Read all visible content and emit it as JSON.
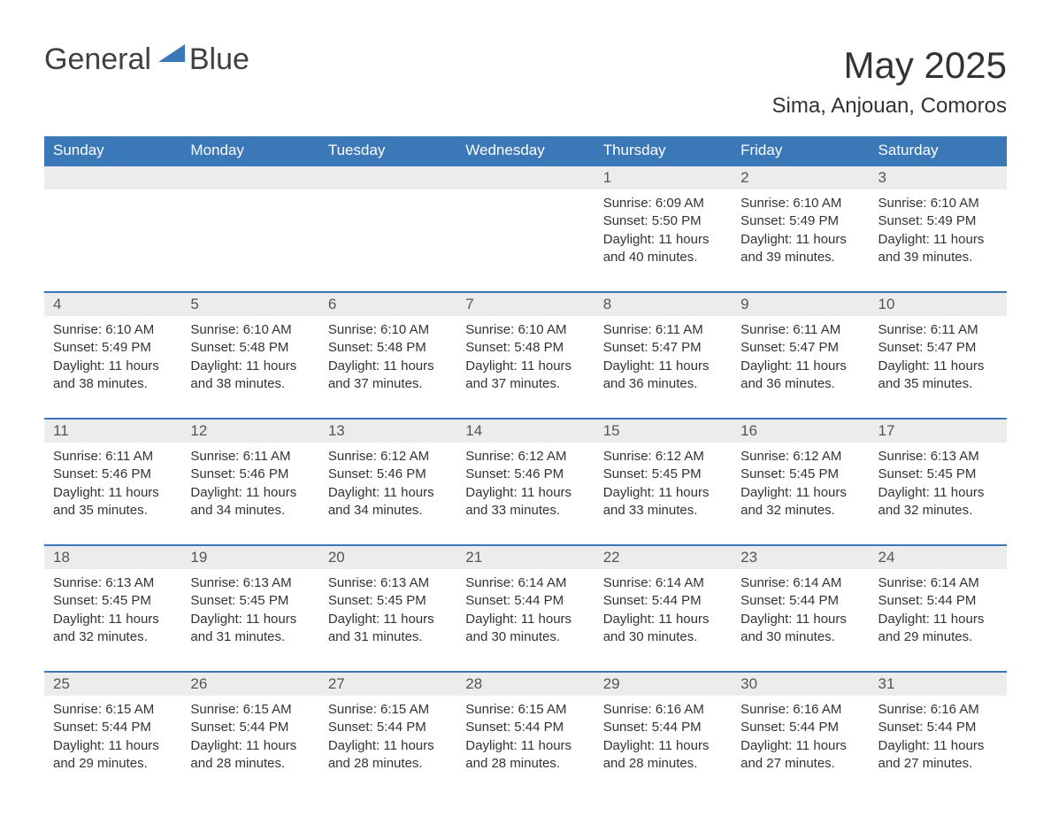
{
  "logo": {
    "word1": "General",
    "word2": "Blue"
  },
  "title": "May 2025",
  "subtitle": "Sima, Anjouan, Comoros",
  "colors": {
    "header_bg": "#3a78b8",
    "header_text": "#ffffff",
    "daynum_bg": "#ececec",
    "cell_border": "#3a78b8",
    "body_text": "#333333",
    "logo_gray": "#404040",
    "logo_blue": "#3a78b8"
  },
  "columns": [
    "Sunday",
    "Monday",
    "Tuesday",
    "Wednesday",
    "Thursday",
    "Friday",
    "Saturday"
  ],
  "weeks": [
    [
      null,
      null,
      null,
      null,
      {
        "n": "1",
        "sr": "6:09 AM",
        "ss": "5:50 PM",
        "dl": "11 hours and 40 minutes."
      },
      {
        "n": "2",
        "sr": "6:10 AM",
        "ss": "5:49 PM",
        "dl": "11 hours and 39 minutes."
      },
      {
        "n": "3",
        "sr": "6:10 AM",
        "ss": "5:49 PM",
        "dl": "11 hours and 39 minutes."
      }
    ],
    [
      {
        "n": "4",
        "sr": "6:10 AM",
        "ss": "5:49 PM",
        "dl": "11 hours and 38 minutes."
      },
      {
        "n": "5",
        "sr": "6:10 AM",
        "ss": "5:48 PM",
        "dl": "11 hours and 38 minutes."
      },
      {
        "n": "6",
        "sr": "6:10 AM",
        "ss": "5:48 PM",
        "dl": "11 hours and 37 minutes."
      },
      {
        "n": "7",
        "sr": "6:10 AM",
        "ss": "5:48 PM",
        "dl": "11 hours and 37 minutes."
      },
      {
        "n": "8",
        "sr": "6:11 AM",
        "ss": "5:47 PM",
        "dl": "11 hours and 36 minutes."
      },
      {
        "n": "9",
        "sr": "6:11 AM",
        "ss": "5:47 PM",
        "dl": "11 hours and 36 minutes."
      },
      {
        "n": "10",
        "sr": "6:11 AM",
        "ss": "5:47 PM",
        "dl": "11 hours and 35 minutes."
      }
    ],
    [
      {
        "n": "11",
        "sr": "6:11 AM",
        "ss": "5:46 PM",
        "dl": "11 hours and 35 minutes."
      },
      {
        "n": "12",
        "sr": "6:11 AM",
        "ss": "5:46 PM",
        "dl": "11 hours and 34 minutes."
      },
      {
        "n": "13",
        "sr": "6:12 AM",
        "ss": "5:46 PM",
        "dl": "11 hours and 34 minutes."
      },
      {
        "n": "14",
        "sr": "6:12 AM",
        "ss": "5:46 PM",
        "dl": "11 hours and 33 minutes."
      },
      {
        "n": "15",
        "sr": "6:12 AM",
        "ss": "5:45 PM",
        "dl": "11 hours and 33 minutes."
      },
      {
        "n": "16",
        "sr": "6:12 AM",
        "ss": "5:45 PM",
        "dl": "11 hours and 32 minutes."
      },
      {
        "n": "17",
        "sr": "6:13 AM",
        "ss": "5:45 PM",
        "dl": "11 hours and 32 minutes."
      }
    ],
    [
      {
        "n": "18",
        "sr": "6:13 AM",
        "ss": "5:45 PM",
        "dl": "11 hours and 32 minutes."
      },
      {
        "n": "19",
        "sr": "6:13 AM",
        "ss": "5:45 PM",
        "dl": "11 hours and 31 minutes."
      },
      {
        "n": "20",
        "sr": "6:13 AM",
        "ss": "5:45 PM",
        "dl": "11 hours and 31 minutes."
      },
      {
        "n": "21",
        "sr": "6:14 AM",
        "ss": "5:44 PM",
        "dl": "11 hours and 30 minutes."
      },
      {
        "n": "22",
        "sr": "6:14 AM",
        "ss": "5:44 PM",
        "dl": "11 hours and 30 minutes."
      },
      {
        "n": "23",
        "sr": "6:14 AM",
        "ss": "5:44 PM",
        "dl": "11 hours and 30 minutes."
      },
      {
        "n": "24",
        "sr": "6:14 AM",
        "ss": "5:44 PM",
        "dl": "11 hours and 29 minutes."
      }
    ],
    [
      {
        "n": "25",
        "sr": "6:15 AM",
        "ss": "5:44 PM",
        "dl": "11 hours and 29 minutes."
      },
      {
        "n": "26",
        "sr": "6:15 AM",
        "ss": "5:44 PM",
        "dl": "11 hours and 28 minutes."
      },
      {
        "n": "27",
        "sr": "6:15 AM",
        "ss": "5:44 PM",
        "dl": "11 hours and 28 minutes."
      },
      {
        "n": "28",
        "sr": "6:15 AM",
        "ss": "5:44 PM",
        "dl": "11 hours and 28 minutes."
      },
      {
        "n": "29",
        "sr": "6:16 AM",
        "ss": "5:44 PM",
        "dl": "11 hours and 28 minutes."
      },
      {
        "n": "30",
        "sr": "6:16 AM",
        "ss": "5:44 PM",
        "dl": "11 hours and 27 minutes."
      },
      {
        "n": "31",
        "sr": "6:16 AM",
        "ss": "5:44 PM",
        "dl": "11 hours and 27 minutes."
      }
    ]
  ],
  "labels": {
    "sunrise": "Sunrise: ",
    "sunset": "Sunset: ",
    "daylight": "Daylight: "
  }
}
